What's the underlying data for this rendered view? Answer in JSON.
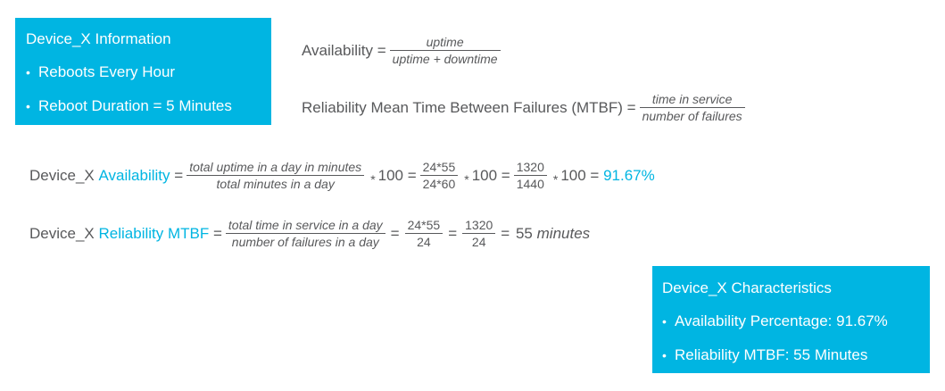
{
  "info_box": {
    "title": "Device_X Information",
    "bullets": [
      "Reboots Every Hour",
      "Reboot Duration = 5 Minutes"
    ]
  },
  "availability_def": {
    "label": "Availability =",
    "numerator": "uptime",
    "denominator": "uptime + downtime"
  },
  "reliability_def": {
    "label": "Reliability Mean Time Between Failures (MTBF) =",
    "numerator": "time in service",
    "denominator": "number of failures"
  },
  "availability_calc": {
    "prefix": "Device_X",
    "term": "Availability",
    "eq": "=",
    "frac1_num": "total uptime in a day in minutes",
    "frac1_den": "total minutes in a day",
    "star": "*",
    "times100_eq": "100 =",
    "frac2_num": "24*55",
    "frac2_den": "24*60",
    "frac3_num": "1320",
    "frac3_den": "1440",
    "times100": "100 =",
    "result": "91.67%"
  },
  "reliability_calc": {
    "prefix": "Device_X",
    "term": "Reliability MTBF",
    "eq": "=",
    "frac1_num": "total time in service in a day",
    "frac1_den": "number of failures in a day",
    "frac2_num": "24*55",
    "frac2_den": "24",
    "frac3_num": "1320",
    "frac3_den": "24",
    "result_value": "55",
    "result_unit": "minutes"
  },
  "characteristics_box": {
    "title": "Device_X Characteristics",
    "bullets": [
      "Availability Percentage: 91.67%",
      "Reliability MTBF: 55 Minutes"
    ]
  },
  "colors": {
    "accent": "#00b5e2",
    "text": "#58595b",
    "box_text": "#ffffff"
  }
}
